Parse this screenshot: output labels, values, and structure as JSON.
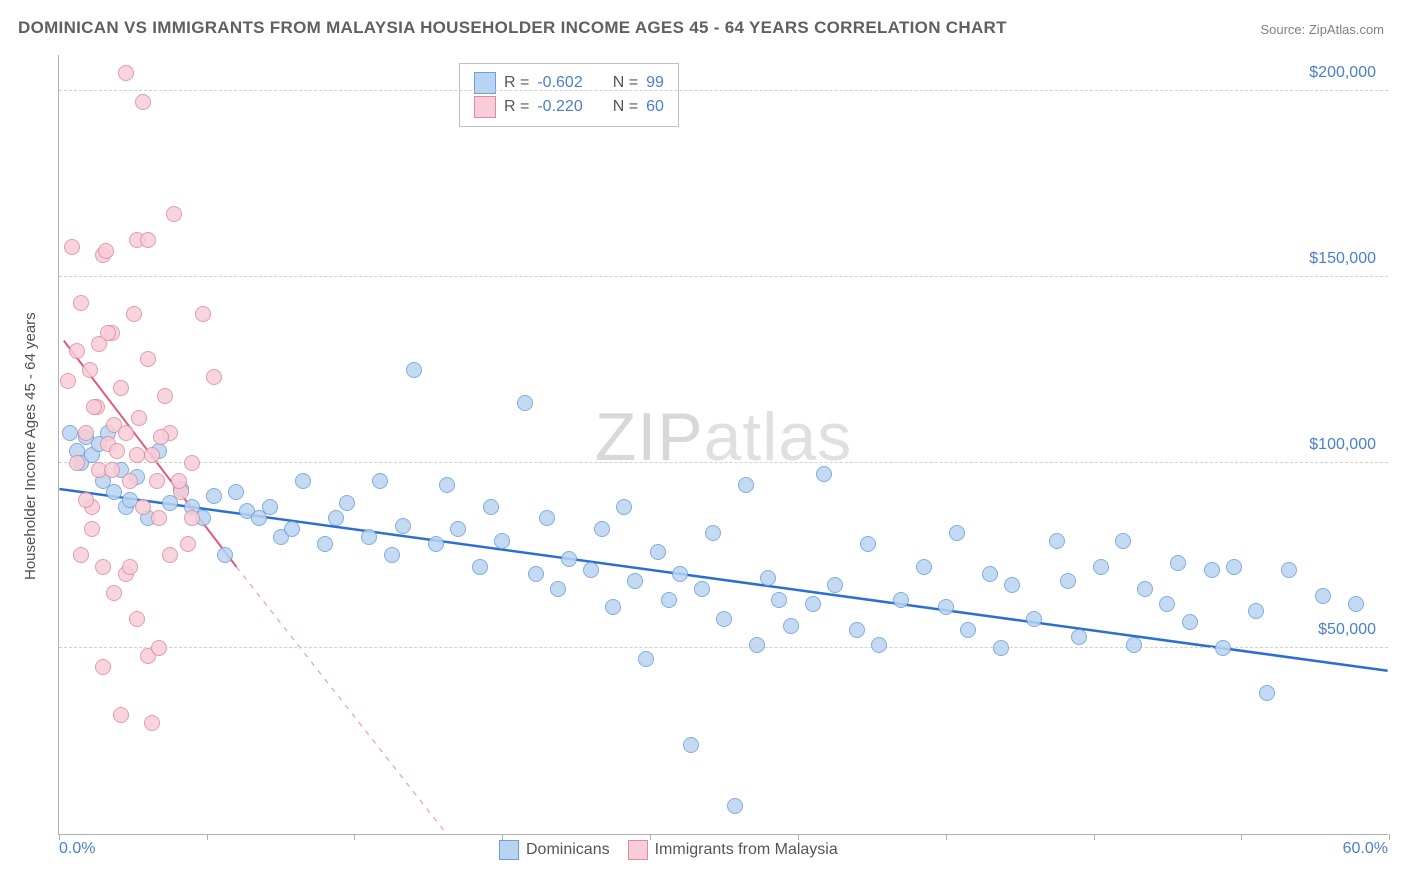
{
  "chart": {
    "type": "scatter",
    "title": "DOMINICAN VS IMMIGRANTS FROM MALAYSIA HOUSEHOLDER INCOME AGES 45 - 64 YEARS CORRELATION CHART",
    "source": "Source: ZipAtlas.com",
    "ylabel": "Householder Income Ages 45 - 64 years",
    "watermark_1": "ZIP",
    "watermark_2": "atlas",
    "xlim": [
      0,
      60
    ],
    "ylim": [
      0,
      210000
    ],
    "x_tick_positions": [
      0,
      6.67,
      13.33,
      20,
      26.67,
      33.33,
      40,
      46.67,
      53.33,
      60
    ],
    "x_tick_labels": {
      "start": "0.0%",
      "end": "60.0%"
    },
    "y_gridlines": [
      50000,
      100000,
      150000,
      200000
    ],
    "y_tick_labels": [
      "$50,000",
      "$100,000",
      "$150,000",
      "$200,000"
    ],
    "background_color": "#ffffff",
    "grid_color": "#d0d0d0",
    "axis_color": "#b0b0b0",
    "tick_label_color": "#4a7fc9",
    "title_color": "#606060",
    "series": [
      {
        "name": "Dominicans",
        "marker_fill": "#b9d4f0",
        "marker_stroke": "#6aa0de",
        "marker_radius": 8,
        "trend_color": "#2d6fd0",
        "trend_width": 2.5,
        "trend_solid": [
          [
            0,
            93000
          ],
          [
            60,
            44000
          ]
        ],
        "R": "-0.602",
        "N": "99",
        "points": [
          [
            0.5,
            108000
          ],
          [
            0.8,
            103000
          ],
          [
            1.0,
            100000
          ],
          [
            1.2,
            107000
          ],
          [
            1.5,
            102000
          ],
          [
            1.8,
            105000
          ],
          [
            2.0,
            95000
          ],
          [
            2.2,
            108000
          ],
          [
            2.5,
            92000
          ],
          [
            2.8,
            98000
          ],
          [
            3.0,
            88000
          ],
          [
            3.2,
            90000
          ],
          [
            3.5,
            96000
          ],
          [
            4.0,
            85000
          ],
          [
            4.5,
            103000
          ],
          [
            5.0,
            89000
          ],
          [
            5.5,
            93000
          ],
          [
            6.0,
            88000
          ],
          [
            6.5,
            85000
          ],
          [
            7.0,
            91000
          ],
          [
            7.5,
            75000
          ],
          [
            8.0,
            92000
          ],
          [
            8.5,
            87000
          ],
          [
            9.0,
            85000
          ],
          [
            9.5,
            88000
          ],
          [
            10.0,
            80000
          ],
          [
            10.5,
            82000
          ],
          [
            11.0,
            95000
          ],
          [
            12.0,
            78000
          ],
          [
            12.5,
            85000
          ],
          [
            13.0,
            89000
          ],
          [
            14.0,
            80000
          ],
          [
            14.5,
            95000
          ],
          [
            15.0,
            75000
          ],
          [
            15.5,
            83000
          ],
          [
            16.0,
            125000
          ],
          [
            17.0,
            78000
          ],
          [
            17.5,
            94000
          ],
          [
            18.0,
            82000
          ],
          [
            19.0,
            72000
          ],
          [
            19.5,
            88000
          ],
          [
            20.0,
            79000
          ],
          [
            21.0,
            116000
          ],
          [
            21.5,
            70000
          ],
          [
            22.0,
            85000
          ],
          [
            22.5,
            66000
          ],
          [
            23.0,
            74000
          ],
          [
            24.0,
            71000
          ],
          [
            24.5,
            82000
          ],
          [
            25.0,
            61000
          ],
          [
            25.5,
            88000
          ],
          [
            26.0,
            68000
          ],
          [
            26.5,
            47000
          ],
          [
            27.0,
            76000
          ],
          [
            27.5,
            63000
          ],
          [
            28.0,
            70000
          ],
          [
            28.5,
            24000
          ],
          [
            29.0,
            66000
          ],
          [
            29.5,
            81000
          ],
          [
            30.0,
            58000
          ],
          [
            30.5,
            7500
          ],
          [
            31.0,
            94000
          ],
          [
            31.5,
            51000
          ],
          [
            32.0,
            69000
          ],
          [
            32.5,
            63000
          ],
          [
            33.0,
            56000
          ],
          [
            34.0,
            62000
          ],
          [
            34.5,
            97000
          ],
          [
            35.0,
            67000
          ],
          [
            36.0,
            55000
          ],
          [
            36.5,
            78000
          ],
          [
            37.0,
            51000
          ],
          [
            38.0,
            63000
          ],
          [
            39.0,
            72000
          ],
          [
            40.0,
            61000
          ],
          [
            40.5,
            81000
          ],
          [
            41.0,
            55000
          ],
          [
            42.0,
            70000
          ],
          [
            42.5,
            50000
          ],
          [
            43.0,
            67000
          ],
          [
            44.0,
            58000
          ],
          [
            45.0,
            79000
          ],
          [
            45.5,
            68000
          ],
          [
            46.0,
            53000
          ],
          [
            47.0,
            72000
          ],
          [
            48.0,
            79000
          ],
          [
            48.5,
            51000
          ],
          [
            49.0,
            66000
          ],
          [
            50.0,
            62000
          ],
          [
            50.5,
            73000
          ],
          [
            51.0,
            57000
          ],
          [
            52.0,
            71000
          ],
          [
            52.5,
            50000
          ],
          [
            53.0,
            72000
          ],
          [
            54.0,
            60000
          ],
          [
            54.5,
            38000
          ],
          [
            55.5,
            71000
          ],
          [
            57.0,
            64000
          ],
          [
            58.5,
            62000
          ]
        ]
      },
      {
        "name": "Immigrants from Malaysia",
        "marker_fill": "#f7cdd7",
        "marker_stroke": "#e08aa0",
        "marker_radius": 8,
        "trend_color": "#e05a7a",
        "trend_width": 2,
        "trend_solid": [
          [
            0.2,
            133000
          ],
          [
            8,
            72000
          ]
        ],
        "trend_dashed": [
          [
            8,
            72000
          ],
          [
            17.5,
            0
          ]
        ],
        "R": "-0.220",
        "N": "60",
        "points": [
          [
            0.4,
            122000
          ],
          [
            0.6,
            158000
          ],
          [
            0.8,
            130000
          ],
          [
            1.0,
            143000
          ],
          [
            1.2,
            108000
          ],
          [
            1.4,
            125000
          ],
          [
            1.5,
            88000
          ],
          [
            1.7,
            115000
          ],
          [
            1.8,
            98000
          ],
          [
            2.0,
            156000
          ],
          [
            2.1,
            157000
          ],
          [
            2.2,
            105000
          ],
          [
            2.4,
            135000
          ],
          [
            2.5,
            110000
          ],
          [
            2.6,
            103000
          ],
          [
            2.8,
            120000
          ],
          [
            3.0,
            205000
          ],
          [
            3.2,
            95000
          ],
          [
            3.4,
            140000
          ],
          [
            3.5,
            160000
          ],
          [
            3.6,
            112000
          ],
          [
            3.8,
            197000
          ],
          [
            4.0,
            128000
          ],
          [
            4.2,
            102000
          ],
          [
            4.4,
            95000
          ],
          [
            4.5,
            85000
          ],
          [
            4.8,
            118000
          ],
          [
            5.0,
            108000
          ],
          [
            5.2,
            167000
          ],
          [
            5.5,
            92000
          ],
          [
            5.8,
            78000
          ],
          [
            6.0,
            100000
          ],
          [
            6.5,
            140000
          ],
          [
            2.0,
            72000
          ],
          [
            2.5,
            65000
          ],
          [
            3.0,
            70000
          ],
          [
            3.5,
            58000
          ],
          [
            1.0,
            75000
          ],
          [
            1.5,
            82000
          ],
          [
            4.0,
            48000
          ],
          [
            4.5,
            50000
          ],
          [
            7.0,
            123000
          ],
          [
            2.2,
            135000
          ],
          [
            3.0,
            108000
          ],
          [
            4.0,
            160000
          ],
          [
            1.8,
            132000
          ],
          [
            3.8,
            88000
          ],
          [
            5.0,
            75000
          ],
          [
            4.2,
            30000
          ],
          [
            2.8,
            32000
          ],
          [
            2.0,
            45000
          ],
          [
            1.2,
            90000
          ],
          [
            0.8,
            100000
          ],
          [
            3.5,
            102000
          ],
          [
            6.0,
            85000
          ],
          [
            1.6,
            115000
          ],
          [
            2.4,
            98000
          ],
          [
            4.6,
            107000
          ],
          [
            3.2,
            72000
          ],
          [
            5.4,
            95000
          ]
        ]
      }
    ],
    "legend_top_label_R": "R =",
    "legend_top_label_N": "N ="
  }
}
